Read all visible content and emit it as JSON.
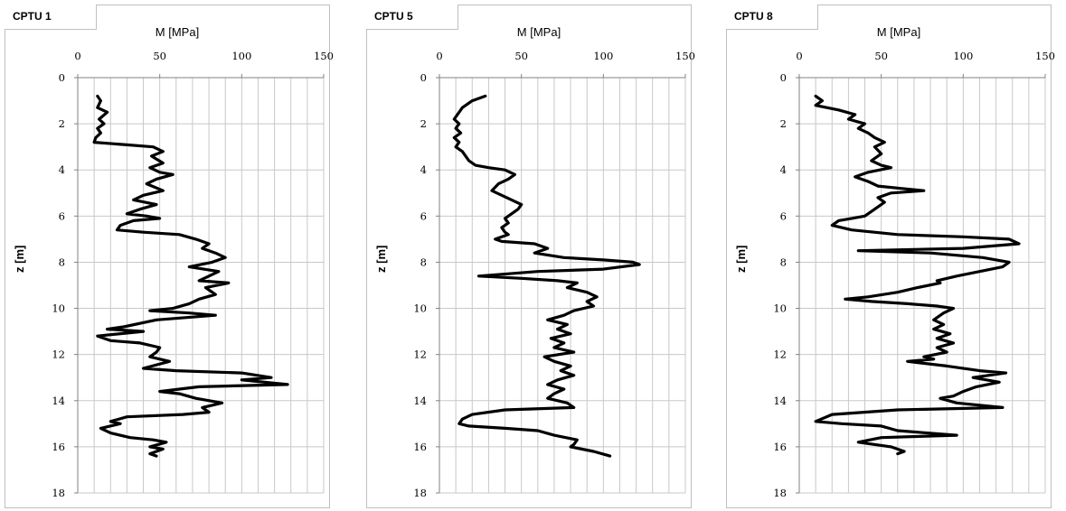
{
  "chart_data": [
    {
      "type": "line",
      "title": "CPTU 1",
      "xlabel": "M [MPa]",
      "ylabel": "z [m]",
      "xlim": [
        0,
        150
      ],
      "ylim": [
        0,
        18
      ],
      "y_inverted": true,
      "grid": true,
      "xticks": [
        0,
        50,
        100,
        150
      ],
      "yticks": [
        0,
        2,
        4,
        6,
        8,
        10,
        12,
        14,
        16,
        18
      ],
      "series": [
        {
          "points": [
            [
              12,
              0.8
            ],
            [
              14,
              1.0
            ],
            [
              12,
              1.3
            ],
            [
              18,
              1.5
            ],
            [
              13,
              1.8
            ],
            [
              16,
              2.0
            ],
            [
              12,
              2.2
            ],
            [
              14,
              2.4
            ],
            [
              11,
              2.6
            ],
            [
              10,
              2.8
            ],
            [
              28,
              2.9
            ],
            [
              46,
              3.0
            ],
            [
              52,
              3.2
            ],
            [
              45,
              3.4
            ],
            [
              52,
              3.7
            ],
            [
              44,
              3.9
            ],
            [
              50,
              4.1
            ],
            [
              58,
              4.2
            ],
            [
              48,
              4.4
            ],
            [
              42,
              4.6
            ],
            [
              52,
              4.9
            ],
            [
              40,
              5.1
            ],
            [
              34,
              5.3
            ],
            [
              48,
              5.5
            ],
            [
              38,
              5.7
            ],
            [
              30,
              5.9
            ],
            [
              42,
              6.0
            ],
            [
              50,
              6.1
            ],
            [
              34,
              6.2
            ],
            [
              26,
              6.4
            ],
            [
              24,
              6.6
            ],
            [
              40,
              6.7
            ],
            [
              62,
              6.8
            ],
            [
              72,
              7.0
            ],
            [
              80,
              7.2
            ],
            [
              76,
              7.4
            ],
            [
              84,
              7.6
            ],
            [
              90,
              7.8
            ],
            [
              82,
              8.0
            ],
            [
              68,
              8.2
            ],
            [
              86,
              8.4
            ],
            [
              80,
              8.6
            ],
            [
              74,
              8.8
            ],
            [
              92,
              8.9
            ],
            [
              78,
              9.1
            ],
            [
              84,
              9.4
            ],
            [
              74,
              9.6
            ],
            [
              68,
              9.8
            ],
            [
              58,
              10.0
            ],
            [
              44,
              10.1
            ],
            [
              68,
              10.2
            ],
            [
              84,
              10.3
            ],
            [
              48,
              10.5
            ],
            [
              28,
              10.8
            ],
            [
              18,
              10.9
            ],
            [
              40,
              11.0
            ],
            [
              12,
              11.2
            ],
            [
              20,
              11.4
            ],
            [
              38,
              11.5
            ],
            [
              50,
              11.7
            ],
            [
              48,
              11.9
            ],
            [
              44,
              12.1
            ],
            [
              56,
              12.3
            ],
            [
              40,
              12.6
            ],
            [
              60,
              12.7
            ],
            [
              100,
              12.8
            ],
            [
              118,
              13.0
            ],
            [
              100,
              13.1
            ],
            [
              128,
              13.3
            ],
            [
              74,
              13.4
            ],
            [
              50,
              13.6
            ],
            [
              62,
              13.7
            ],
            [
              72,
              13.9
            ],
            [
              88,
              14.1
            ],
            [
              76,
              14.3
            ],
            [
              80,
              14.5
            ],
            [
              64,
              14.6
            ],
            [
              30,
              14.7
            ],
            [
              20,
              14.9
            ],
            [
              26,
              15.0
            ],
            [
              14,
              15.2
            ],
            [
              20,
              15.4
            ],
            [
              32,
              15.6
            ],
            [
              46,
              15.7
            ],
            [
              54,
              15.8
            ],
            [
              44,
              16.0
            ],
            [
              52,
              16.1
            ],
            [
              44,
              16.3
            ],
            [
              48,
              16.4
            ]
          ]
        }
      ]
    },
    {
      "type": "line",
      "title": "CPTU 5",
      "xlabel": "M [MPa]",
      "ylabel": "z [m]",
      "xlim": [
        0,
        150
      ],
      "ylim": [
        0,
        18
      ],
      "y_inverted": true,
      "grid": true,
      "xticks": [
        0,
        50,
        100,
        150
      ],
      "yticks": [
        0,
        2,
        4,
        6,
        8,
        10,
        12,
        14,
        16,
        18
      ],
      "series": [
        {
          "points": [
            [
              28,
              0.8
            ],
            [
              20,
              1.0
            ],
            [
              14,
              1.3
            ],
            [
              12,
              1.5
            ],
            [
              9,
              1.8
            ],
            [
              12,
              2.0
            ],
            [
              10,
              2.2
            ],
            [
              13,
              2.4
            ],
            [
              9,
              2.6
            ],
            [
              12,
              2.8
            ],
            [
              10,
              3.0
            ],
            [
              14,
              3.2
            ],
            [
              16,
              3.4
            ],
            [
              18,
              3.6
            ],
            [
              22,
              3.8
            ],
            [
              30,
              3.9
            ],
            [
              40,
              4.0
            ],
            [
              46,
              4.2
            ],
            [
              42,
              4.4
            ],
            [
              36,
              4.6
            ],
            [
              32,
              4.9
            ],
            [
              38,
              5.1
            ],
            [
              44,
              5.3
            ],
            [
              50,
              5.5
            ],
            [
              48,
              5.7
            ],
            [
              44,
              5.9
            ],
            [
              40,
              6.1
            ],
            [
              42,
              6.3
            ],
            [
              38,
              6.5
            ],
            [
              40,
              6.7
            ],
            [
              42,
              6.8
            ],
            [
              34,
              7.0
            ],
            [
              38,
              7.1
            ],
            [
              58,
              7.2
            ],
            [
              66,
              7.4
            ],
            [
              58,
              7.6
            ],
            [
              76,
              7.8
            ],
            [
              100,
              7.9
            ],
            [
              118,
              8.0
            ],
            [
              122,
              8.1
            ],
            [
              100,
              8.3
            ],
            [
              60,
              8.4
            ],
            [
              24,
              8.6
            ],
            [
              50,
              8.7
            ],
            [
              72,
              8.8
            ],
            [
              84,
              8.9
            ],
            [
              78,
              9.1
            ],
            [
              90,
              9.3
            ],
            [
              96,
              9.5
            ],
            [
              90,
              9.7
            ],
            [
              94,
              9.9
            ],
            [
              82,
              10.1
            ],
            [
              76,
              10.3
            ],
            [
              66,
              10.5
            ],
            [
              78,
              10.7
            ],
            [
              72,
              10.9
            ],
            [
              80,
              11.1
            ],
            [
              68,
              11.3
            ],
            [
              76,
              11.5
            ],
            [
              70,
              11.7
            ],
            [
              82,
              11.9
            ],
            [
              64,
              12.1
            ],
            [
              70,
              12.3
            ],
            [
              80,
              12.5
            ],
            [
              74,
              12.7
            ],
            [
              82,
              12.9
            ],
            [
              72,
              13.1
            ],
            [
              66,
              13.3
            ],
            [
              76,
              13.5
            ],
            [
              70,
              13.7
            ],
            [
              66,
              13.9
            ],
            [
              78,
              14.1
            ],
            [
              82,
              14.3
            ],
            [
              40,
              14.4
            ],
            [
              20,
              14.6
            ],
            [
              14,
              14.8
            ],
            [
              12,
              15.0
            ],
            [
              18,
              15.1
            ],
            [
              40,
              15.2
            ],
            [
              60,
              15.3
            ],
            [
              70,
              15.5
            ],
            [
              84,
              15.7
            ],
            [
              82,
              15.9
            ],
            [
              80,
              16.0
            ],
            [
              94,
              16.2
            ],
            [
              104,
              16.4
            ]
          ]
        }
      ]
    },
    {
      "type": "line",
      "title": "CPTU 8",
      "xlabel": "M [MPa]",
      "ylabel": "z [m]",
      "xlim": [
        0,
        150
      ],
      "ylim": [
        0,
        18
      ],
      "y_inverted": true,
      "grid": true,
      "xticks": [
        0,
        50,
        100,
        150
      ],
      "yticks": [
        0,
        2,
        4,
        6,
        8,
        10,
        12,
        14,
        16,
        18
      ],
      "series": [
        {
          "points": [
            [
              10,
              0.8
            ],
            [
              14,
              1.0
            ],
            [
              10,
              1.2
            ],
            [
              24,
              1.4
            ],
            [
              34,
              1.6
            ],
            [
              30,
              1.8
            ],
            [
              40,
              2.0
            ],
            [
              36,
              2.2
            ],
            [
              42,
              2.4
            ],
            [
              46,
              2.6
            ],
            [
              52,
              2.8
            ],
            [
              46,
              3.0
            ],
            [
              50,
              3.3
            ],
            [
              44,
              3.6
            ],
            [
              50,
              3.8
            ],
            [
              56,
              3.9
            ],
            [
              42,
              4.1
            ],
            [
              34,
              4.3
            ],
            [
              42,
              4.5
            ],
            [
              48,
              4.7
            ],
            [
              62,
              4.8
            ],
            [
              76,
              4.9
            ],
            [
              56,
              5.0
            ],
            [
              48,
              5.2
            ],
            [
              52,
              5.4
            ],
            [
              46,
              5.7
            ],
            [
              40,
              6.0
            ],
            [
              32,
              6.1
            ],
            [
              24,
              6.2
            ],
            [
              20,
              6.4
            ],
            [
              32,
              6.6
            ],
            [
              60,
              6.8
            ],
            [
              100,
              6.9
            ],
            [
              128,
              7.0
            ],
            [
              134,
              7.2
            ],
            [
              100,
              7.4
            ],
            [
              36,
              7.5
            ],
            [
              80,
              7.6
            ],
            [
              112,
              7.8
            ],
            [
              128,
              8.0
            ],
            [
              124,
              8.2
            ],
            [
              110,
              8.4
            ],
            [
              96,
              8.6
            ],
            [
              84,
              8.8
            ],
            [
              86,
              8.9
            ],
            [
              72,
              9.1
            ],
            [
              60,
              9.3
            ],
            [
              42,
              9.5
            ],
            [
              28,
              9.6
            ],
            [
              44,
              9.7
            ],
            [
              66,
              9.8
            ],
            [
              84,
              9.9
            ],
            [
              94,
              10.0
            ],
            [
              88,
              10.2
            ],
            [
              82,
              10.5
            ],
            [
              88,
              10.7
            ],
            [
              82,
              10.9
            ],
            [
              92,
              11.1
            ],
            [
              84,
              11.3
            ],
            [
              94,
              11.5
            ],
            [
              84,
              11.7
            ],
            [
              90,
              11.9
            ],
            [
              76,
              12.1
            ],
            [
              82,
              12.2
            ],
            [
              66,
              12.3
            ],
            [
              90,
              12.5
            ],
            [
              110,
              12.7
            ],
            [
              126,
              12.8
            ],
            [
              106,
              13.0
            ],
            [
              122,
              13.2
            ],
            [
              108,
              13.4
            ],
            [
              100,
              13.6
            ],
            [
              94,
              13.8
            ],
            [
              86,
              13.9
            ],
            [
              96,
              14.1
            ],
            [
              124,
              14.3
            ],
            [
              60,
              14.4
            ],
            [
              20,
              14.6
            ],
            [
              10,
              14.9
            ],
            [
              26,
              15.0
            ],
            [
              50,
              15.1
            ],
            [
              60,
              15.3
            ],
            [
              96,
              15.5
            ],
            [
              50,
              15.6
            ],
            [
              36,
              15.8
            ],
            [
              56,
              16.0
            ],
            [
              64,
              16.2
            ],
            [
              60,
              16.3
            ]
          ]
        }
      ]
    }
  ]
}
